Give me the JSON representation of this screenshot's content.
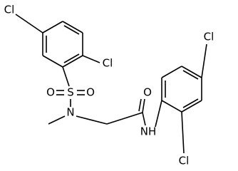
{
  "atoms": [
    "Cl",
    "Cl",
    "S",
    "O",
    "O",
    "N",
    "O",
    "NH",
    "Cl",
    "Cl"
  ]
}
